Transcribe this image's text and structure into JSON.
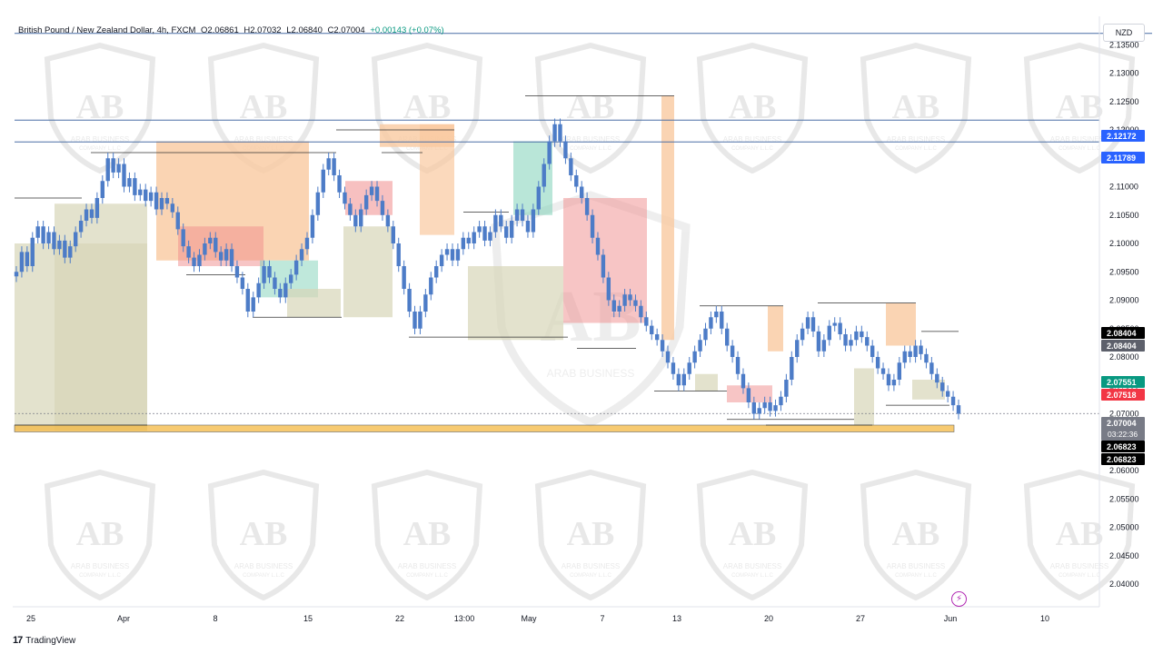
{
  "header": {
    "symbol": "British Pound / New Zealand Dollar, 4h, FXCM",
    "open": "O2.06861",
    "high": "H2.07032",
    "low": "L2.06840",
    "close": "C2.07004",
    "change": "+0.00143 (+0.07%)"
  },
  "currency_button": "NZD",
  "footer": {
    "logo": "17",
    "brand": "TradingView"
  },
  "watermark": {
    "brand": "ARAB BUSINESS",
    "sub": "COMPANY L.L.C"
  },
  "colors": {
    "candle_body": "#4d7cc7",
    "level_line": "#4a6fa5",
    "demand_zone": "#f5b942",
    "supply_fill": "#f9c9a0",
    "bull_fill": "#d7d6b8",
    "red_fill": "#f08c8c",
    "teal_fill": "#7fd1b8",
    "tag_blue": "#2962ff",
    "tag_black": "#000000",
    "tag_green": "#089981",
    "tag_red": "#f23645"
  },
  "chart_data": {
    "type": "candlestick",
    "title": "British Pound / New Zealand Dollar, 4h, FXCM",
    "ylim": [
      2.036,
      2.14
    ],
    "y_ticks": [
      "2.13500",
      "2.13000",
      "2.12500",
      "2.12000",
      "2.11500",
      "2.11000",
      "2.10500",
      "2.10000",
      "2.09500",
      "2.09000",
      "2.08500",
      "2.08000",
      "2.07500",
      "2.07000",
      "2.06500",
      "2.06000",
      "2.05500",
      "2.05000",
      "2.04500",
      "2.04000"
    ],
    "x_ticks": [
      "25",
      "Apr",
      "8",
      "15",
      "22",
      "13:00",
      "May",
      "7",
      "13",
      "20",
      "27",
      "Jun",
      "10"
    ],
    "price_levels": [
      {
        "label": "2.12172",
        "value": 2.12172,
        "style": "blue"
      },
      {
        "label": "2.11789",
        "value": 2.11789,
        "style": "blue"
      },
      {
        "label": "2.08404",
        "value": 2.08404,
        "style": "black"
      },
      {
        "label": "2.08404",
        "value": 2.08404,
        "style": "gray"
      },
      {
        "label": "2.07551",
        "value": 2.07551,
        "style": "green"
      },
      {
        "label": "2.07518",
        "value": 2.07518,
        "style": "red"
      },
      {
        "label": "2.07004",
        "value": 2.07004,
        "style": "last"
      },
      {
        "label": "2.06823",
        "value": 2.06823,
        "style": "black"
      },
      {
        "label": "2.06823",
        "value": 2.06823,
        "style": "black"
      }
    ],
    "countdown": "03:22:36",
    "top_line": 2.137,
    "demand_zone": [
      2.0668,
      2.068
    ],
    "series": [
      {
        "name": "",
        "values": [
          2.095,
          2.0985,
          2.096,
          2.101,
          2.103,
          2.1,
          2.102,
          2.099,
          2.1005,
          2.0975,
          2.0995,
          2.102,
          2.104,
          2.106,
          2.1045,
          2.108,
          2.111,
          2.115,
          2.1125,
          2.114,
          2.11,
          2.1115,
          2.1085,
          2.1095,
          2.1075,
          2.109,
          2.106,
          2.108,
          2.107,
          2.1055,
          2.1025,
          2.0995,
          2.0975,
          2.096,
          2.098,
          2.1,
          2.101,
          2.0985,
          2.097,
          2.099,
          2.096,
          2.094,
          2.092,
          2.088,
          2.0905,
          2.093,
          2.096,
          2.094,
          2.092,
          2.0905,
          2.093,
          2.0945,
          2.097,
          2.099,
          2.101,
          2.105,
          2.109,
          2.113,
          2.115,
          2.112,
          2.109,
          2.107,
          2.105,
          2.103,
          2.106,
          2.1085,
          2.11,
          2.1075,
          2.105,
          2.103,
          2.1,
          2.096,
          2.092,
          2.088,
          2.085,
          2.088,
          2.091,
          2.094,
          2.096,
          2.098,
          2.099,
          2.097,
          2.099,
          2.101,
          2.1,
          2.102,
          2.103,
          2.1005,
          2.102,
          2.105,
          2.103,
          2.101,
          2.104,
          2.106,
          2.104,
          2.102,
          2.106,
          2.11,
          2.114,
          2.118,
          2.121,
          2.118,
          2.115,
          2.112,
          2.11,
          2.108,
          2.105,
          2.101,
          2.098,
          2.094,
          2.09,
          2.088,
          2.089,
          2.091,
          2.09,
          2.089,
          2.087,
          2.0855,
          2.084,
          2.083,
          2.081,
          2.079,
          2.077,
          2.075,
          2.077,
          2.079,
          2.081,
          2.083,
          2.085,
          2.087,
          2.088,
          2.085,
          2.082,
          2.08,
          2.077,
          2.0745,
          2.072,
          2.07,
          2.071,
          2.072,
          2.0705,
          2.0715,
          2.073,
          2.076,
          2.08,
          2.083,
          2.085,
          2.087,
          2.0845,
          2.081,
          2.083,
          2.0855,
          2.086,
          2.084,
          2.082,
          2.083,
          2.0845,
          2.0835,
          2.082,
          2.08,
          2.078,
          2.077,
          2.075,
          2.076,
          2.079,
          2.081,
          2.08,
          2.082,
          2.0805,
          2.079,
          2.077,
          2.0755,
          2.074,
          2.073,
          2.0715,
          2.07
        ]
      }
    ]
  }
}
